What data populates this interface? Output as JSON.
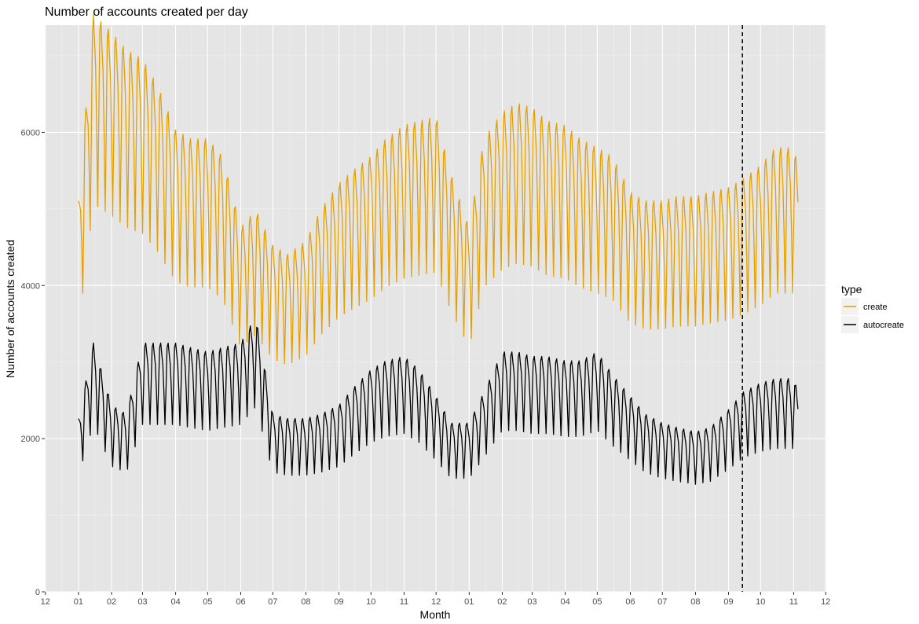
{
  "chart_data": {
    "type": "line",
    "title": "Number of accounts created per day",
    "xlabel": "Month",
    "ylabel": "Number of accounts created",
    "ylim": [
      0,
      7400
    ],
    "y_ticks": [
      0,
      2000,
      4000,
      6000
    ],
    "x_ticks": [
      "12",
      "01",
      "02",
      "03",
      "04",
      "05",
      "06",
      "07",
      "08",
      "09",
      "10",
      "11",
      "12",
      "01",
      "02",
      "03",
      "04",
      "05",
      "06",
      "07",
      "08",
      "09",
      "10",
      "11",
      "12"
    ],
    "x_range_months": [
      "Dec 2015",
      "Dec 2017"
    ],
    "grid": true,
    "panel_background": "#e5e5e5",
    "legend": {
      "title": "type",
      "placement": "right"
    },
    "reference_line": {
      "date": "2017-09-14",
      "style": "dashed",
      "color": "#000000"
    },
    "series": [
      {
        "name": "create",
        "color": "#e69f00",
        "points": [
          [
            "2016-01-01",
            4400
          ],
          [
            "2016-01-15",
            6500
          ],
          [
            "2016-02-01",
            6300
          ],
          [
            "2016-02-15",
            6100
          ],
          [
            "2016-03-01",
            6000
          ],
          [
            "2016-03-15",
            5700
          ],
          [
            "2016-04-01",
            5200
          ],
          [
            "2016-04-15",
            5100
          ],
          [
            "2016-05-01",
            5100
          ],
          [
            "2016-05-15",
            4900
          ],
          [
            "2016-06-01",
            4100
          ],
          [
            "2016-06-15",
            4300
          ],
          [
            "2016-07-01",
            3900
          ],
          [
            "2016-07-15",
            3800
          ],
          [
            "2016-08-01",
            3950
          ],
          [
            "2016-08-15",
            4300
          ],
          [
            "2016-09-01",
            4600
          ],
          [
            "2016-09-15",
            4750
          ],
          [
            "2016-10-01",
            4900
          ],
          [
            "2016-10-15",
            5100
          ],
          [
            "2016-11-01",
            5250
          ],
          [
            "2016-11-15",
            5300
          ],
          [
            "2016-12-01",
            5350
          ],
          [
            "2016-12-15",
            4700
          ],
          [
            "2017-01-01",
            4100
          ],
          [
            "2017-01-15",
            5100
          ],
          [
            "2017-02-01",
            5400
          ],
          [
            "2017-02-15",
            5500
          ],
          [
            "2017-03-01",
            5450
          ],
          [
            "2017-03-15",
            5300
          ],
          [
            "2017-04-01",
            5250
          ],
          [
            "2017-04-15",
            5100
          ],
          [
            "2017-05-01",
            5000
          ],
          [
            "2017-05-15",
            4900
          ],
          [
            "2017-06-01",
            4500
          ],
          [
            "2017-06-15",
            4400
          ],
          [
            "2017-07-01",
            4400
          ],
          [
            "2017-07-15",
            4450
          ],
          [
            "2017-08-01",
            4450
          ],
          [
            "2017-08-15",
            4500
          ],
          [
            "2017-09-01",
            4550
          ],
          [
            "2017-09-15",
            4650
          ],
          [
            "2017-10-01",
            4800
          ],
          [
            "2017-10-15",
            5000
          ],
          [
            "2017-11-01",
            5000
          ],
          [
            "2017-11-05",
            4800
          ]
        ]
      },
      {
        "name": "autocreate",
        "color": "#000000",
        "points": [
          [
            "2016-01-01",
            1950
          ],
          [
            "2016-01-15",
            2800
          ],
          [
            "2016-02-01",
            2100
          ],
          [
            "2016-02-15",
            2000
          ],
          [
            "2016-03-01",
            2800
          ],
          [
            "2016-03-15",
            2800
          ],
          [
            "2016-04-01",
            2800
          ],
          [
            "2016-04-15",
            2750
          ],
          [
            "2016-05-01",
            2700
          ],
          [
            "2016-05-15",
            2750
          ],
          [
            "2016-06-01",
            2800
          ],
          [
            "2016-06-15",
            3100
          ],
          [
            "2016-07-01",
            2000
          ],
          [
            "2016-07-15",
            1950
          ],
          [
            "2016-08-01",
            1950
          ],
          [
            "2016-08-15",
            2000
          ],
          [
            "2016-09-01",
            2100
          ],
          [
            "2016-09-15",
            2300
          ],
          [
            "2016-10-01",
            2500
          ],
          [
            "2016-10-15",
            2600
          ],
          [
            "2016-11-01",
            2650
          ],
          [
            "2016-11-15",
            2500
          ],
          [
            "2016-12-01",
            2200
          ],
          [
            "2016-12-15",
            1900
          ],
          [
            "2017-01-01",
            1900
          ],
          [
            "2017-01-15",
            2250
          ],
          [
            "2017-02-01",
            2700
          ],
          [
            "2017-02-15",
            2700
          ],
          [
            "2017-03-01",
            2650
          ],
          [
            "2017-03-15",
            2650
          ],
          [
            "2017-04-01",
            2600
          ],
          [
            "2017-04-15",
            2600
          ],
          [
            "2017-05-01",
            2700
          ],
          [
            "2017-05-15",
            2450
          ],
          [
            "2017-06-01",
            2200
          ],
          [
            "2017-06-15",
            2000
          ],
          [
            "2017-07-01",
            1900
          ],
          [
            "2017-07-15",
            1850
          ],
          [
            "2017-08-01",
            1800
          ],
          [
            "2017-08-15",
            1850
          ],
          [
            "2017-09-01",
            2050
          ],
          [
            "2017-09-15",
            2250
          ],
          [
            "2017-10-01",
            2350
          ],
          [
            "2017-10-15",
            2400
          ],
          [
            "2017-11-01",
            2400
          ],
          [
            "2017-11-05",
            2250
          ]
        ]
      }
    ]
  }
}
